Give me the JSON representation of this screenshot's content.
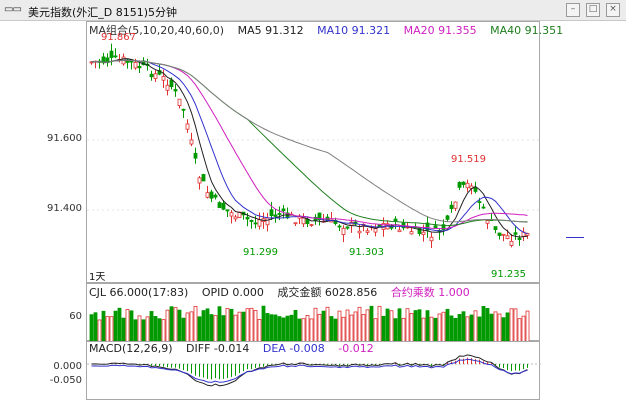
{
  "window": {
    "title": "美元指数(外汇_D 8151)5分钟",
    "icon_name": "window-icon",
    "buttons": [
      "minimize",
      "maximize",
      "close"
    ]
  },
  "price_panel": {
    "ma_label": "MA组合(5,10,20,40,60,0)",
    "ma5": "MA5 91.312",
    "ma10": "MA10 91.321",
    "ma20": "MA20 91.355",
    "ma40": "MA40 91.351",
    "y_ticks": [
      "91.600",
      "91.400"
    ],
    "period_label": "1天",
    "annotations": {
      "high": "91.867",
      "spike": "91.519",
      "low1": "91.299",
      "low2": "91.303",
      "low3": "91.235"
    },
    "colors": {
      "up": "#e03030",
      "down": "#009a00",
      "ma5": "#222222",
      "ma10": "#3333cc",
      "ma20": "#d020c0",
      "ma40": "#208020",
      "ma60": "#808080"
    }
  },
  "volume_panel": {
    "cjl": "CJL 66.000(17:83)",
    "opid": "OPID  0.000",
    "amount": "成交金额  6028.856",
    "contract": "合约乘数  1.000",
    "y_tick": "60"
  },
  "macd_panel": {
    "label": "MACD(12,26,9)",
    "diff": "DIFF  -0.014",
    "dea": "DEA  -0.008",
    "macd": "-0.012",
    "y_ticks": [
      "0.000",
      "-0.050"
    ]
  }
}
